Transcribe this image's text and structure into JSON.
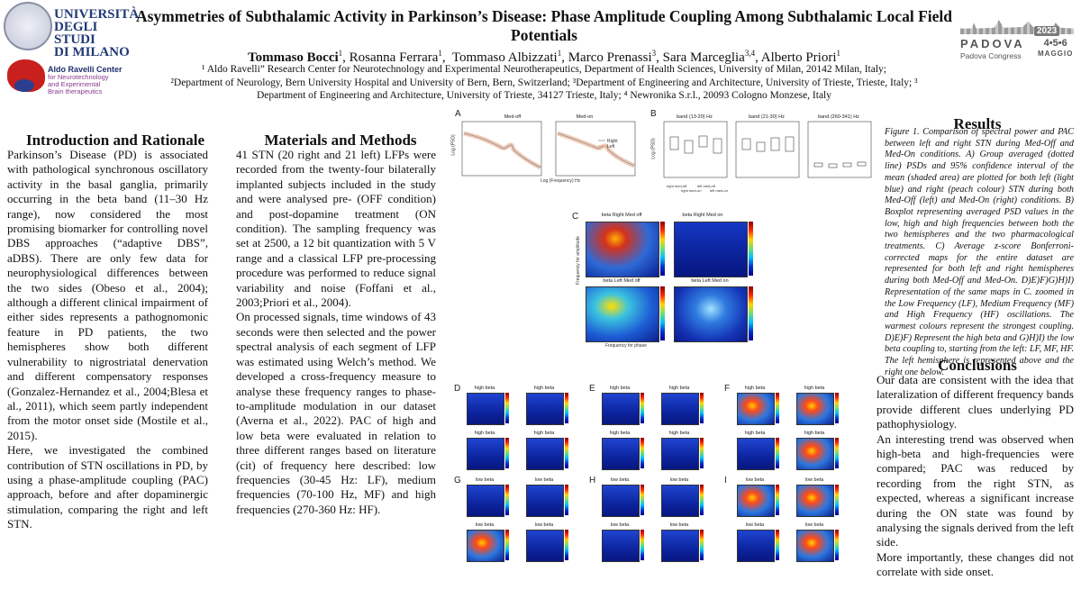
{
  "header": {
    "title": "Asymmetries of Subthalamic Activity in Parkinson’s Disease: Phase Amplitude Coupling Among Subthalamic Local Field Potentials",
    "authors": [
      {
        "name": "Tommaso Bocci",
        "sup": "1",
        "bold": true,
        "sep": ", "
      },
      {
        "name": "Rosanna Ferrara",
        "sup": "1",
        "sep": ",  "
      },
      {
        "name": "Tommaso Albizzati",
        "sup": "1",
        "sep": ", "
      },
      {
        "name": "Marco Prenassi",
        "sup": "3",
        "sep": ", "
      },
      {
        "name": "Sara Marceglia",
        "sup": "3,4",
        "sep": ", "
      },
      {
        "name": "Alberto Priori",
        "sup": "1",
        "sep": ""
      }
    ],
    "affiliations": [
      "¹ Aldo Ravelli” Research Center for Neurotechnology and Experimental Neurotherapeutics, Department of Health Sciences, University of Milan, 20142 Milan, Italy;",
      "²Department of Neurology, Bern University Hospital and University of Bern, Bern, Switzerland; ³Department of Engineering and Architecture, University of Trieste, Trieste, Italy; ³",
      "Department of Engineering and Architecture, University of Trieste, 34127 Trieste, Italy; ⁴ Newronika S.r.l., 20093 Cologno Monzese, Italy"
    ]
  },
  "logos": {
    "unimi": [
      "UNIVERSITÀ",
      "DEGLI STUDI",
      "DI MILANO"
    ],
    "ravelli_name": "Aldo Ravelli Center",
    "ravelli_sub": [
      "for Neurotechnology",
      "and Experimental",
      "Brain therapeutics"
    ],
    "congress_city": "PADOVA",
    "congress_year": "2023",
    "congress_sub": "Padova Congress",
    "congress_days": "4•5•6",
    "congress_month": "MAGGIO"
  },
  "intro": {
    "heading": "Introduction and Rationale",
    "paragraphs": [
      "Parkinson’s Disease (PD) is associated with pathological synchronous oscillatory activity in the basal ganglia, primarily occurring in the beta band (11–30 Hz range), now considered the most promising biomarker for controlling novel DBS approaches (“adaptive DBS”, aDBS). There are only few data for neurophysiological differences between the two sides (Obeso et al., 2004); although a different clinical impairment of either sides represents a pathognomonic feature in PD patients, the two hemispheres show both different vulnerability to nigrostriatal denervation and different compensatory responses (Gonzalez-Hernandez et al., 2004;Blesa et al., 2011), which seem partly independent from the motor onset side (Mostile et al., 2015).",
      "Here, we investigated the combined contribution of STN oscillations in PD, by using a phase-amplitude coupling (PAC) approach, before and after dopaminergic stimulation, comparing the right and left STN."
    ]
  },
  "methods": {
    "heading": "Materials and Methods",
    "paragraphs": [
      "41 STN (20 right and 21 left) LFPs were recorded from the twenty-four bilaterally implanted subjects included in the study and were analysed pre- (OFF condition) and post-dopamine treatment (ON condition). The sampling frequency was set at 2500, a 12 bit quantization with 5 V range and a classical LFP pre-processing procedure was performed to reduce signal variability and noise (Foffani et al., 2003;Priori et al., 2004).",
      "On processed signals, time windows of 43 seconds were then selected and the power spectral analysis of each segment of LFP was estimated using Welch’s method. We developed a cross-frequency measure to analyse these frequency ranges to phase-to-amplitude modulation in our dataset (Averna et al., 2022). PAC of high and low beta were evaluated in relation to three different ranges based on literature (cit) of frequency here described: low frequencies (30-45 Hz: LF), medium frequencies (70-100 Hz, MF) and high frequencies (270-360 Hz: HF)."
    ]
  },
  "results": {
    "heading": "Results",
    "caption": "Figure 1. Comparison of spectral power and PAC between left and right STN during Med-Off and Med-On conditions. A) Group averaged (dotted line) PSDs and 95% confidence interval of the mean (shaded area) are plotted for both left (light blue) and right (peach colour) STN during both Med-Off (left) and Med-On (right) conditions. B) Boxplot representing averaged PSD values in the low, high and high frequencies between both the two hemispheres and the two pharmacological treatments. C) Average z-score Bonferroni-corrected maps for the entire dataset are represented for both left and right hemispheres during both Med-Off and Med-On. D)E)F)G)H)I) Representation of the same maps in C. zoomed in the Low Frequency (LF), Medium Frequency (MF) and High Frequency (HF) oscillations. The warmest colours represent the strongest coupling. D)E)F) Represent the high beta and G)H)I) the low beta coupling to, starting from the left: LF, MF, HF. The left hemisphere is represented above and the right one below."
  },
  "conclusions": {
    "heading": "Conclusions",
    "paragraphs": [
      "Our data are consistent with the idea that lateralization of different frequency bands provide different clues underlying PD pathophysiology.",
      "An interesting trend was observed when high-beta and high-frequencies were compared; PAC was reduced by recording from the right STN, as expected, whereas a significant increase during the ON state was found by analysing the signals derived from the left side.",
      "More importantly, these changes did not correlate with side onset."
    ]
  },
  "figure": {
    "panel_letters": [
      "A",
      "B",
      "C",
      "D",
      "E",
      "F",
      "G",
      "H",
      "I"
    ],
    "a_titles": [
      "Med-off",
      "Med-on"
    ],
    "a_legend": [
      "Right",
      "Left"
    ],
    "a_ylabel": "Log (PSD)",
    "a_xlabel": "Log (Frequency) Hz",
    "b_titles": [
      "band (13-20) Hz",
      "band (21-30) Hz",
      "band (260-341) Hz"
    ],
    "b_ylabel": "Log (PSD)",
    "b_ticks": [
      "right med-off",
      "right med-on",
      "left med-off",
      "left med-on"
    ],
    "c_titles": [
      "beta Right Med off",
      "beta Right Med on",
      "beta Left Med off",
      "beta Left Med on"
    ],
    "c_ylabel": "Frequency for amplitude",
    "c_xlabel": "Frequency for phase",
    "def_titles": [
      "high beta",
      "high beta"
    ],
    "ghi_titles": [
      "low beta",
      "low beta"
    ]
  }
}
